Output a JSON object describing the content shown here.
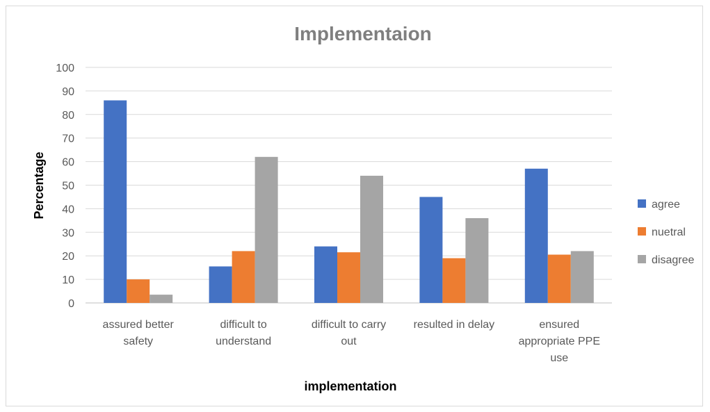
{
  "chart_data": {
    "type": "bar",
    "title": "Implementaion",
    "xlabel": "implementation",
    "ylabel": "Percentage",
    "ylim": [
      0,
      100
    ],
    "yticks": [
      0,
      10,
      20,
      30,
      40,
      50,
      60,
      70,
      80,
      90,
      100
    ],
    "grid": true,
    "legend_position": "right",
    "categories": [
      [
        "assured better",
        "safety"
      ],
      [
        "difficult to",
        "understand"
      ],
      [
        "difficult to carry",
        "out"
      ],
      [
        "resulted in delay"
      ],
      [
        "ensured",
        "appropriate PPE",
        "use"
      ]
    ],
    "series": [
      {
        "name": "agree",
        "color": "#4472c4",
        "values": [
          86,
          15.5,
          24,
          45,
          57
        ]
      },
      {
        "name": "nuetral",
        "color": "#ed7d31",
        "values": [
          10,
          22,
          21.5,
          19,
          20.5
        ]
      },
      {
        "name": "disagree",
        "color": "#a5a5a5",
        "values": [
          3.5,
          62,
          54,
          36,
          22
        ]
      }
    ]
  }
}
